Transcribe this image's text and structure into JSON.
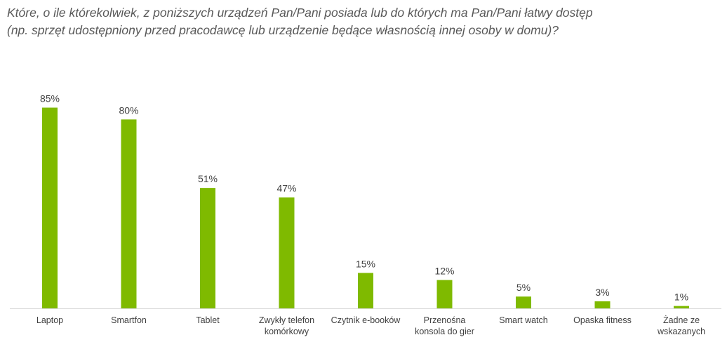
{
  "question": {
    "line1": "Które, o ile którekolwiek, z poniższych urządzeń Pan/Pani posiada lub do których ma Pan/Pani łatwy dostęp",
    "line2": "(np. sprzęt udostępniony przed pracodawcę lub urządzenie będące własnością innej osoby w domu)?"
  },
  "chart_data": {
    "type": "bar",
    "categories": [
      [
        "Laptop"
      ],
      [
        "Smartfon"
      ],
      [
        "Tablet"
      ],
      [
        "Zwykły telefon",
        "komórkowy"
      ],
      [
        "Czytnik e-booków"
      ],
      [
        "Przenośna",
        "konsola do gier"
      ],
      [
        "Smart watch"
      ],
      [
        "Opaska fitness"
      ],
      [
        "Żadne ze",
        "wskazanych"
      ]
    ],
    "values": [
      85,
      80,
      51,
      47,
      15,
      12,
      5,
      3,
      1
    ],
    "value_labels": [
      "85%",
      "80%",
      "51%",
      "47%",
      "15%",
      "12%",
      "5%",
      "3%",
      "1%"
    ],
    "unit": "%",
    "ylim": [
      0,
      100
    ],
    "grid": false,
    "legend": "none",
    "bar_color": "#7fba00",
    "axis_color": "#d9d9d9",
    "label_color": "#404040"
  }
}
